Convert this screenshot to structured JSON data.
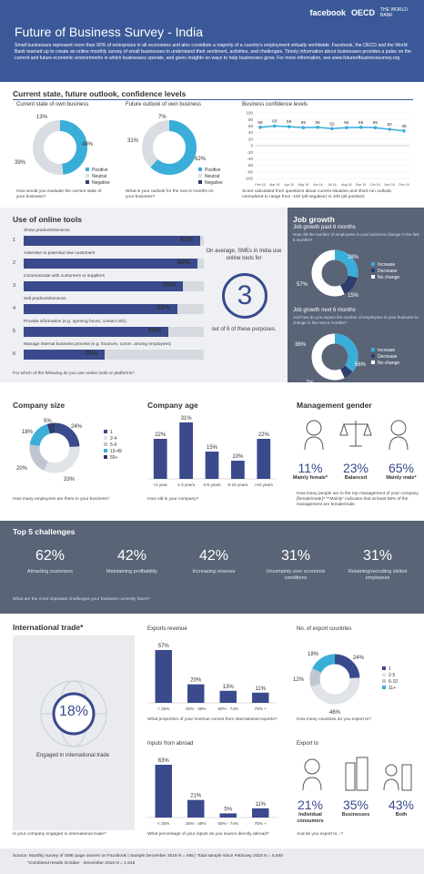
{
  "header": {
    "title": "Future of Business Survey - India",
    "logos": [
      "facebook",
      "OECD",
      "THE WORLD BANK"
    ],
    "intro": "Small businesses represent more than 90% of enterprises in all economies and also constitute a majority of a country's employment virtually worldwide. Facebook, the OECD and the World Bank teamed up to create an online monthly survey of small businesses to understand their sentiment, activities, and challenges. Timely information about businesses provides a pulse on the current and future economic environments in which businesses operate, and gives insights on ways to help businesses grow. For more information, see www.futureofbusinesssurvey.org"
  },
  "state": {
    "title": "Current state, future outlook, confidence levels",
    "current": {
      "title": "Current state of own business",
      "positive": "48%",
      "neutral": "39%",
      "negative": "13%",
      "values": [
        48,
        39,
        13
      ],
      "question": "How would you evaluate the current state of your business?"
    },
    "future": {
      "title": "Future outlook of own business",
      "positive": "62%",
      "neutral": "31%",
      "negative": "7%",
      "values": [
        62,
        31,
        7
      ],
      "question": "What is your outlook for the next 6 months on your business?"
    },
    "legend": [
      "Positive",
      "Neutral",
      "Negative"
    ],
    "confidence": {
      "title": "Business confidence levels",
      "note": "Score calculated from questions about current situation and short-run outlook, normalized to range from -100 (all negative) to 100 (all positive)"
    }
  },
  "online": {
    "title": "Use of online tools",
    "items": [
      {
        "num": "1",
        "label": "Show products/services",
        "pct": "61%",
        "value": 61
      },
      {
        "num": "2",
        "label": "Advertise to potential new customers",
        "pct": "60%",
        "value": 60
      },
      {
        "num": "3",
        "label": "Communicate with customers or suppliers",
        "pct": "55%",
        "value": 55
      },
      {
        "num": "4",
        "label": "Sell products/services",
        "pct": "53%",
        "value": 53
      },
      {
        "num": "5",
        "label": "Provide information (e.g. opening hours, contact info)",
        "pct": "50%",
        "value": 50
      },
      {
        "num": "6",
        "label": "Manage internal business process (e.g. finances, comm. among employees)",
        "pct": "28%",
        "value": 28
      }
    ],
    "question": "For which of the following do you use online tools or platforms?",
    "avg_text": "On average, SMEs in India use online tools for",
    "avg_num": "3",
    "avg_sub": "out of 6 of these purposes."
  },
  "jobs": {
    "title": "Job growth",
    "past": {
      "title": "Job growth past 6 months",
      "question": "How did the number of employees in your business change in the last 6 months?",
      "increase": "28%",
      "decrease": "15%",
      "nochange": "57%",
      "values": [
        28,
        15,
        57
      ]
    },
    "next": {
      "title": "Job growth next 6 months",
      "question": "And how do you expect the number of employees in your business to change in the next 6 months?",
      "increase": "36%",
      "decrease": "7%",
      "nochange": "56%",
      "values": [
        36,
        7,
        56
      ]
    },
    "legend": [
      "Increase",
      "Decrease",
      "No change"
    ]
  },
  "company_size": {
    "title": "Company size",
    "labels": [
      "24%",
      "33%",
      "20%",
      "18%",
      "5%"
    ],
    "values": [
      24,
      33,
      20,
      18,
      5
    ],
    "legend": [
      "1",
      "2-4",
      "5-9",
      "10-49",
      "50+"
    ],
    "question": "How many employees are there in your business?"
  },
  "company_age": {
    "title": "Company age",
    "categories": [
      "<1 year",
      "1-3 years",
      "4-5 years",
      "6-10 years",
      ">10 years"
    ],
    "labels": [
      "22%",
      "31%",
      "15%",
      "10%",
      "22%"
    ],
    "values": [
      22,
      31,
      15,
      10,
      22
    ],
    "question": "How old is your company?"
  },
  "gender": {
    "title": "Management gender",
    "items": [
      {
        "pct": "11%",
        "label": "Mainly female*"
      },
      {
        "pct": "23%",
        "label": "Balanced"
      },
      {
        "pct": "65%",
        "label": "Mainly male*"
      }
    ],
    "question": "How many people are in the top management of your company [female/male]? *\"Mainly\" indicates that at least 65% of the management are female/male."
  },
  "challenges": {
    "title": "Top 5 challenges",
    "items": [
      {
        "pct": "62%",
        "label": "Attracting customers"
      },
      {
        "pct": "42%",
        "label": "Maintaining profitability"
      },
      {
        "pct": "42%",
        "label": "Increasing revenue"
      },
      {
        "pct": "31%",
        "label": "Uncertainty over economic conditions"
      },
      {
        "pct": "31%",
        "label": "Retaining/recruiting skilled employees"
      }
    ],
    "question": "What are the most important challenges your business currently faces?"
  },
  "trade": {
    "title": "International trade*",
    "engaged_pct": "18%",
    "engaged_label": "Engaged in international trade",
    "question": "Is your company engaged in international trade?",
    "exports_revenue": {
      "title": "Exports revenue",
      "categories": [
        "< 25%",
        "25% - 49%",
        "50% - 74%",
        "75% +"
      ],
      "labels": [
        "57%",
        "20%",
        "13%",
        "11%"
      ],
      "values": [
        57,
        20,
        13,
        11
      ],
      "question": "What proportion of your revenue comes from international exports?"
    },
    "inputs_abroad": {
      "title": "Inputs from abroad",
      "categories": [
        "< 25%",
        "25% - 49%",
        "50% - 74%",
        "75% +"
      ],
      "labels": [
        "63%",
        "21%",
        "5%",
        "11%"
      ],
      "values": [
        63,
        21,
        5,
        11
      ],
      "question": "What percentage of your inputs do you source directly abroad?"
    },
    "export_countries": {
      "title": "No. of export countries",
      "labels": [
        "24%",
        "46%",
        "12%",
        "18%"
      ],
      "values": [
        24,
        46,
        12,
        18
      ],
      "legend": [
        "1",
        "2-5",
        "6-10",
        "11+"
      ],
      "question": "How many countries do you export to?"
    },
    "export_to": {
      "title": "Export to",
      "items": [
        {
          "pct": "21%",
          "label": "Individual consumers"
        },
        {
          "pct": "35%",
          "label": "Businesses"
        },
        {
          "pct": "43%",
          "label": "Both"
        }
      ],
      "question": "And do you export to...?"
    }
  },
  "footer": {
    "source": "Source: Monthly survey of SME page owners on Facebook | Sample December 2016 N = 655 | Total sample since February 2016 N = 5,940",
    "note": "*Combined results October - December 2016 N = 1,615"
  },
  "chart_data": [
    {
      "type": "line",
      "title": "Business confidence levels",
      "categories": [
        "Feb 16",
        "Mar 16",
        "Apr 16",
        "May 16",
        "Jun 16",
        "Jul 16",
        "Aug 16",
        "Sep 16",
        "Oct 16",
        "Nov 16",
        "Dec 16"
      ],
      "values": [
        56,
        60,
        58,
        55,
        56,
        52,
        55,
        56,
        55,
        50,
        45
      ],
      "yticks": [
        100,
        80,
        60,
        40,
        20,
        0,
        -20,
        -40,
        -60,
        -80,
        -100
      ],
      "ylim": [
        -100,
        100
      ],
      "xlabel": "",
      "ylabel": ""
    }
  ],
  "colors": {
    "header": "#3b5998",
    "positive": "#3aaed8",
    "neutral": "#d9dde3",
    "negative": "#2e3d6b",
    "bar": "#3a4a8c",
    "job_increase": "#3aaed8",
    "job_decrease": "#2e3d6b",
    "job_nochange": "#ffffff"
  },
  "icons": [
    "female-person-icon",
    "scale-icon",
    "male-person-icon",
    "globe-icon",
    "person-icon",
    "buildings-icon",
    "person-buildings-icon"
  ]
}
